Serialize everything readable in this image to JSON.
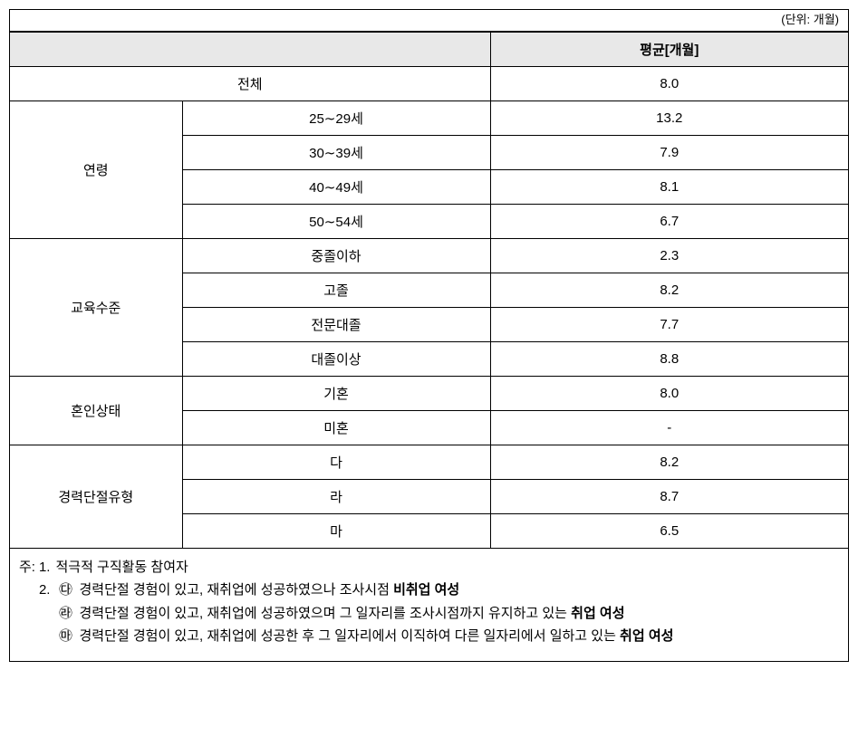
{
  "unit_label": "(단위: 개월)",
  "table": {
    "header": {
      "blank": "",
      "avg": "평균[개월]"
    },
    "total": {
      "label": "전체",
      "value": "8.0"
    },
    "groups": [
      {
        "name": "연령",
        "rows": [
          {
            "label": "25∼29세",
            "value": "13.2"
          },
          {
            "label": "30∼39세",
            "value": "7.9"
          },
          {
            "label": "40∼49세",
            "value": "8.1"
          },
          {
            "label": "50∼54세",
            "value": "6.7"
          }
        ]
      },
      {
        "name": "교육수준",
        "rows": [
          {
            "label": "중졸이하",
            "value": "2.3"
          },
          {
            "label": "고졸",
            "value": "8.2"
          },
          {
            "label": "전문대졸",
            "value": "7.7"
          },
          {
            "label": "대졸이상",
            "value": "8.8"
          }
        ]
      },
      {
        "name": "혼인상태",
        "rows": [
          {
            "label": "기혼",
            "value": "8.0"
          },
          {
            "label": "미혼",
            "value": "-"
          }
        ]
      },
      {
        "name": "경력단절유형",
        "rows": [
          {
            "label": "다",
            "value": "8.2"
          },
          {
            "label": "라",
            "value": "8.7"
          },
          {
            "label": "마",
            "value": "6.5"
          }
        ]
      }
    ]
  },
  "footnotes": {
    "prefix": "주:",
    "items": [
      {
        "num": "1.",
        "text": "적극적 구직활동 참여자"
      },
      {
        "num": "2.",
        "subs": [
          {
            "mark": "㉰",
            "pre": "경력단절 경험이 있고, 재취업에 성공하였으나 조사시점 ",
            "bold": "비취업 여성",
            "post": ""
          },
          {
            "mark": "㉱",
            "pre": "경력단절 경험이 있고, 재취업에 성공하였으며 그 일자리를 조사시점까지 유지하고 있는 ",
            "bold": "취업 여성",
            "post": ""
          },
          {
            "mark": "㉲",
            "pre": "경력단절 경험이 있고, 재취업에 성공한 후 그 일자리에서 이직하여 다른 일자리에서 일하고 있는 ",
            "bold": "취업 여성",
            "post": ""
          }
        ]
      }
    ]
  },
  "style": {
    "background": "#ffffff",
    "header_bg": "#e8e8e8",
    "border_color": "#000000",
    "font_size": 15
  }
}
